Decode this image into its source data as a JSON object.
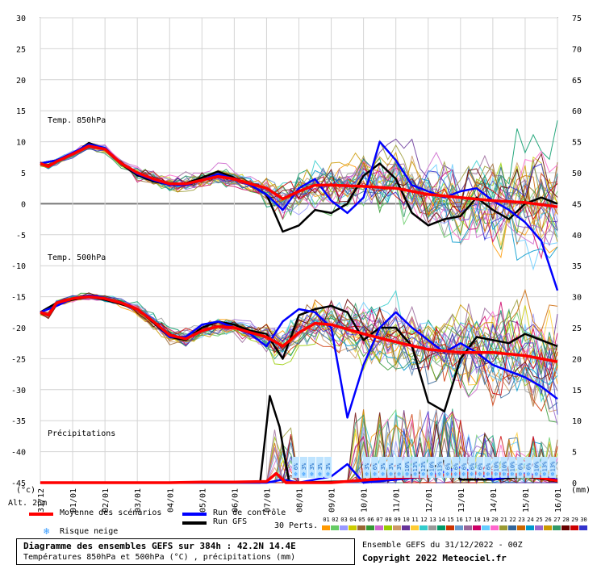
{
  "chart_data": {
    "type": "line",
    "left_axis_ticks": [
      "30",
      "25",
      "20",
      "15",
      "10",
      "5",
      "0",
      "-5",
      "-10",
      "-15",
      "-20",
      "-25",
      "-30",
      "-35",
      "-40",
      "-45"
    ],
    "right_axis_ticks": [
      "75",
      "70",
      "65",
      "60",
      "55",
      "50",
      "45",
      "40",
      "35",
      "30",
      "25",
      "20",
      "15",
      "10",
      "5",
      "0"
    ],
    "left_unit": "(°c)",
    "right_unit": "(mm)",
    "ylim": [
      -45,
      30
    ],
    "y2lim": [
      0,
      75
    ],
    "x_ticks": [
      "31/12",
      "01/01",
      "02/01",
      "03/01",
      "04/01",
      "05/01",
      "06/01",
      "07/01",
      "08/01",
      "09/01",
      "10/01",
      "11/01",
      "12/01",
      "13/01",
      "14/01",
      "15/01",
      "16/01"
    ],
    "x_range_days": [
      0,
      16
    ],
    "altitude_label": "Alt. 26m",
    "section_labels": {
      "t850": "Temp. 850hPa",
      "t500": "Temp. 500hPa",
      "precip": "Précipitations"
    },
    "series": [
      {
        "name": "Moyenne des scénarios",
        "color": "#ff0000",
        "t850": [
          [
            0,
            6.5
          ],
          [
            0.25,
            6.0
          ],
          [
            0.5,
            6.8
          ],
          [
            1.0,
            8.0
          ],
          [
            1.5,
            9.3
          ],
          [
            2.0,
            8.8
          ],
          [
            2.5,
            6.5
          ],
          [
            3.0,
            5.0
          ],
          [
            3.5,
            4.0
          ],
          [
            4.0,
            3.2
          ],
          [
            4.5,
            3.2
          ],
          [
            5.0,
            3.8
          ],
          [
            5.5,
            4.4
          ],
          [
            6.0,
            4.0
          ],
          [
            6.5,
            3.2
          ],
          [
            7.0,
            2.5
          ],
          [
            7.5,
            0.8
          ],
          [
            8.0,
            2.0
          ],
          [
            8.5,
            3.0
          ],
          [
            9.0,
            3.0
          ],
          [
            10.0,
            2.8
          ],
          [
            11.0,
            2.5
          ],
          [
            12.0,
            1.5
          ],
          [
            13.0,
            1.0
          ],
          [
            14.0,
            0.5
          ],
          [
            15.0,
            0.2
          ],
          [
            16.0,
            -0.5
          ]
        ],
        "t500": [
          [
            0,
            -17.5
          ],
          [
            0.25,
            -18.0
          ],
          [
            0.5,
            -16.0
          ],
          [
            1.0,
            -15.3
          ],
          [
            1.5,
            -15.0
          ],
          [
            2.0,
            -15.3
          ],
          [
            2.5,
            -16.0
          ],
          [
            3.0,
            -17.0
          ],
          [
            3.5,
            -19.0
          ],
          [
            4.0,
            -21.2
          ],
          [
            4.5,
            -21.8
          ],
          [
            5.0,
            -20.5
          ],
          [
            5.5,
            -19.8
          ],
          [
            6.0,
            -20.0
          ],
          [
            6.5,
            -20.8
          ],
          [
            7.0,
            -21.5
          ],
          [
            7.5,
            -23.0
          ],
          [
            8.0,
            -20.8
          ],
          [
            8.5,
            -19.3
          ],
          [
            9.0,
            -19.5
          ],
          [
            10.0,
            -21.0
          ],
          [
            11.0,
            -22.3
          ],
          [
            12.0,
            -23.5
          ],
          [
            13.0,
            -24.0
          ],
          [
            14.0,
            -24.0
          ],
          [
            15.0,
            -24.5
          ],
          [
            16.0,
            -25.5
          ]
        ],
        "precip": [
          [
            0,
            0
          ],
          [
            4,
            0
          ],
          [
            5,
            0.1
          ],
          [
            6,
            0.1
          ],
          [
            7,
            0.2
          ],
          [
            7.3,
            1.5
          ],
          [
            7.6,
            0
          ],
          [
            8,
            0
          ],
          [
            9,
            0
          ],
          [
            10,
            0.4
          ],
          [
            11,
            0.8
          ],
          [
            12,
            1.0
          ],
          [
            13,
            1.5
          ],
          [
            14,
            1.5
          ],
          [
            15,
            1.2
          ],
          [
            16,
            0.3
          ]
        ]
      },
      {
        "name": "Run de contrôle",
        "color": "#0000ff",
        "t850": [
          [
            0,
            6.5
          ],
          [
            0.5,
            7.0
          ],
          [
            1.0,
            8.2
          ],
          [
            1.5,
            9.6
          ],
          [
            2.0,
            9.0
          ],
          [
            2.5,
            6.5
          ],
          [
            3.0,
            4.8
          ],
          [
            3.5,
            3.8
          ],
          [
            4.0,
            3.0
          ],
          [
            4.5,
            3.0
          ],
          [
            5.0,
            3.8
          ],
          [
            5.5,
            4.8
          ],
          [
            6.0,
            4.0
          ],
          [
            6.5,
            3.0
          ],
          [
            7.0,
            1.5
          ],
          [
            7.5,
            -1.0
          ],
          [
            8.0,
            2.5
          ],
          [
            8.5,
            4.0
          ],
          [
            9.0,
            0.5
          ],
          [
            9.5,
            -1.5
          ],
          [
            10.0,
            1.0
          ],
          [
            10.5,
            10.0
          ],
          [
            11.0,
            7.0
          ],
          [
            11.5,
            3.0
          ],
          [
            12.0,
            2.0
          ],
          [
            12.5,
            1.0
          ],
          [
            13.0,
            2.0
          ],
          [
            13.5,
            2.5
          ],
          [
            14.0,
            0.5
          ],
          [
            14.5,
            -1.0
          ],
          [
            15.0,
            -3.0
          ],
          [
            15.5,
            -6.0
          ],
          [
            16.0,
            -14.0
          ]
        ],
        "t500": [
          [
            0,
            -17.5
          ],
          [
            0.5,
            -16.5
          ],
          [
            1.0,
            -15.3
          ],
          [
            1.5,
            -14.8
          ],
          [
            2.0,
            -15.2
          ],
          [
            2.5,
            -16.0
          ],
          [
            3.0,
            -17.0
          ],
          [
            3.5,
            -19.0
          ],
          [
            4.0,
            -21.5
          ],
          [
            4.5,
            -21.5
          ],
          [
            5.0,
            -19.5
          ],
          [
            5.5,
            -19.0
          ],
          [
            6.0,
            -20.0
          ],
          [
            6.5,
            -21.0
          ],
          [
            7.0,
            -23.0
          ],
          [
            7.5,
            -19.0
          ],
          [
            8.0,
            -17.0
          ],
          [
            8.5,
            -17.5
          ],
          [
            9.0,
            -20.0
          ],
          [
            9.5,
            -34.5
          ],
          [
            10.0,
            -26.0
          ],
          [
            10.5,
            -20.0
          ],
          [
            11.0,
            -17.5
          ],
          [
            11.5,
            -20.0
          ],
          [
            12.0,
            -22.0
          ],
          [
            12.5,
            -24.0
          ],
          [
            13.0,
            -22.5
          ],
          [
            13.5,
            -24.0
          ],
          [
            14.0,
            -26.0
          ],
          [
            14.5,
            -27.0
          ],
          [
            15.0,
            -28.0
          ],
          [
            15.5,
            -29.5
          ],
          [
            16.0,
            -31.5
          ]
        ],
        "precip": [
          [
            0,
            0
          ],
          [
            7,
            0
          ],
          [
            7.5,
            0.5
          ],
          [
            8,
            0
          ],
          [
            9,
            1.0
          ],
          [
            9.5,
            3.0
          ],
          [
            10,
            0
          ],
          [
            11,
            0.5
          ],
          [
            12,
            1.0
          ],
          [
            13,
            2.5
          ],
          [
            14,
            0.5
          ],
          [
            15,
            1.5
          ],
          [
            16,
            0.5
          ]
        ]
      },
      {
        "name": "Run GFS",
        "color": "#000000",
        "t850": [
          [
            0,
            6.5
          ],
          [
            0.5,
            7.0
          ],
          [
            1.0,
            8.0
          ],
          [
            1.5,
            9.8
          ],
          [
            2.0,
            8.8
          ],
          [
            2.5,
            6.4
          ],
          [
            3.0,
            4.6
          ],
          [
            3.5,
            3.6
          ],
          [
            4.0,
            3.1
          ],
          [
            4.5,
            3.3
          ],
          [
            5.0,
            4.2
          ],
          [
            5.5,
            5.2
          ],
          [
            6.0,
            4.2
          ],
          [
            6.5,
            3.0
          ],
          [
            7.0,
            1.5
          ],
          [
            7.5,
            -4.5
          ],
          [
            8.0,
            -3.5
          ],
          [
            8.5,
            -1.0
          ],
          [
            9.0,
            -1.5
          ],
          [
            9.5,
            0.0
          ],
          [
            10.0,
            4.5
          ],
          [
            10.5,
            6.5
          ],
          [
            11.0,
            4.0
          ],
          [
            11.5,
            -1.5
          ],
          [
            12.0,
            -3.5
          ],
          [
            12.5,
            -2.5
          ],
          [
            13.0,
            -2.0
          ],
          [
            13.5,
            1.0
          ],
          [
            14.0,
            -1.0
          ],
          [
            14.5,
            -2.5
          ],
          [
            15.0,
            0.0
          ],
          [
            15.5,
            1.0
          ],
          [
            16.0,
            0.0
          ]
        ],
        "t500": [
          [
            0,
            -17.5
          ],
          [
            0.5,
            -16.0
          ],
          [
            1.0,
            -15.5
          ],
          [
            1.5,
            -15.0
          ],
          [
            2.0,
            -15.5
          ],
          [
            2.5,
            -16.2
          ],
          [
            3.0,
            -17.0
          ],
          [
            3.5,
            -19.2
          ],
          [
            4.0,
            -21.5
          ],
          [
            4.5,
            -22.0
          ],
          [
            5.0,
            -20.0
          ],
          [
            5.5,
            -19.0
          ],
          [
            6.0,
            -19.5
          ],
          [
            6.5,
            -20.5
          ],
          [
            7.0,
            -21.0
          ],
          [
            7.5,
            -25.0
          ],
          [
            8.0,
            -18.0
          ],
          [
            8.5,
            -17.0
          ],
          [
            9.0,
            -16.5
          ],
          [
            9.5,
            -17.5
          ],
          [
            10.0,
            -22.0
          ],
          [
            10.5,
            -20.0
          ],
          [
            11.0,
            -20.0
          ],
          [
            11.5,
            -23.0
          ],
          [
            12.0,
            -32.0
          ],
          [
            12.5,
            -33.5
          ],
          [
            13.0,
            -25.0
          ],
          [
            13.5,
            -21.5
          ],
          [
            14.0,
            -22.0
          ],
          [
            14.5,
            -22.5
          ],
          [
            15.0,
            -21.0
          ],
          [
            15.5,
            -22.0
          ],
          [
            16.0,
            -23.0
          ]
        ],
        "precip": [
          [
            0,
            0
          ],
          [
            6.8,
            0
          ],
          [
            7.1,
            14.0
          ],
          [
            7.4,
            9.0
          ],
          [
            7.7,
            0
          ],
          [
            10,
            0.3
          ],
          [
            11,
            0.5
          ],
          [
            12,
            2.0
          ],
          [
            12.5,
            3.5
          ],
          [
            13,
            0.5
          ],
          [
            14,
            0.5
          ],
          [
            15,
            1.0
          ],
          [
            16,
            0.2
          ]
        ]
      }
    ],
    "snow_risk_ticks": [
      {
        "day": 7.9,
        "label": "6%"
      },
      {
        "day": 8.15,
        "label": "3%"
      },
      {
        "day": 8.4,
        "label": "3%"
      },
      {
        "day": 8.65,
        "label": "3%"
      },
      {
        "day": 8.9,
        "label": "3%"
      },
      {
        "day": 10.1,
        "label": "3%"
      },
      {
        "day": 10.35,
        "label": "6%"
      },
      {
        "day": 10.6,
        "label": "3%"
      },
      {
        "day": 10.85,
        "label": "3%"
      },
      {
        "day": 11.1,
        "label": "3%"
      },
      {
        "day": 11.35,
        "label": "10%"
      },
      {
        "day": 11.6,
        "label": "13%"
      },
      {
        "day": 11.85,
        "label": "13%"
      },
      {
        "day": 12.1,
        "label": "10%"
      },
      {
        "day": 12.35,
        "label": "13%"
      },
      {
        "day": 12.6,
        "label": "6%"
      },
      {
        "day": 12.85,
        "label": "6%"
      },
      {
        "day": 13.1,
        "label": "6%"
      },
      {
        "day": 13.35,
        "label": "6%"
      },
      {
        "day": 13.6,
        "label": "6%"
      },
      {
        "day": 13.85,
        "label": "6%"
      },
      {
        "day": 14.1,
        "label": "10%"
      },
      {
        "day": 14.35,
        "label": "10%"
      },
      {
        "day": 14.6,
        "label": "10%"
      },
      {
        "day": 14.85,
        "label": "6%"
      },
      {
        "day": 15.1,
        "label": "6%"
      },
      {
        "day": 15.35,
        "label": "10%"
      },
      {
        "day": 15.6,
        "label": "13%"
      },
      {
        "day": 15.85,
        "label": "13%"
      }
    ]
  },
  "legend": {
    "mean_label": "Moyenne des scénarios",
    "mean_color": "#ff0000",
    "control_label": "Run de contrôle",
    "control_color": "#0000ff",
    "gfs_label": "Run GFS",
    "gfs_color": "#000000",
    "snow_label": "Risque neige",
    "perts_label": "30 Perts.",
    "perts_numbers": [
      "01",
      "02",
      "03",
      "04",
      "05",
      "06",
      "07",
      "08",
      "09",
      "10",
      "11",
      "12",
      "13",
      "14",
      "15",
      "16",
      "17",
      "18",
      "19",
      "20",
      "21",
      "22",
      "23",
      "24",
      "25",
      "26",
      "27",
      "28",
      "29",
      "30"
    ],
    "perts_colors": [
      "#ff9900",
      "#66cc66",
      "#9999ff",
      "#cccc00",
      "#996633",
      "#339933",
      "#cc66cc",
      "#99cc00",
      "#cc9966",
      "#663399",
      "#ffcc33",
      "#33cccc",
      "#999999",
      "#009966",
      "#cc3300",
      "#6699cc",
      "#996699",
      "#cc0066",
      "#66ccff",
      "#ff66cc",
      "#999933",
      "#336699",
      "#cc6600",
      "#0099cc",
      "#9966cc",
      "#cc9900",
      "#339966",
      "#660000",
      "#cc0000",
      "#3333cc"
    ]
  },
  "footer": {
    "title": "Diagramme des ensembles GEFS sur 384h : 42.2N 14.4E",
    "subtitle": "Températures 850hPa et 500hPa (°C) , précipitations (mm)",
    "run": "Ensemble GEFS du 31/12/2022 - 00Z",
    "copyright": "Copyright 2022 Meteociel.fr"
  }
}
